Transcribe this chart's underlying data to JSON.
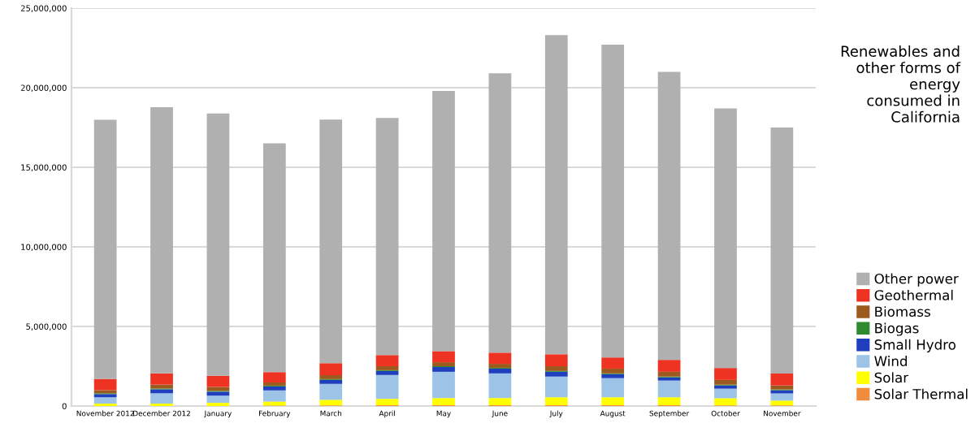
{
  "chart_data": {
    "type": "bar",
    "stacked": true,
    "title": "Renewables and\nother forms of\nenergy\nconsumed in\nCalifornia",
    "categories": [
      "November 2012",
      "December 2012",
      "January",
      "February",
      "March",
      "April",
      "May",
      "June",
      "July",
      "August",
      "September",
      "October",
      "November"
    ],
    "series": [
      {
        "name": "Solar Thermal",
        "color": "#f08c3c",
        "values": [
          null,
          null,
          null,
          30000,
          40000,
          50000,
          50000,
          50000,
          50000,
          50000,
          50000,
          40000,
          40000
        ]
      },
      {
        "name": "Solar",
        "color": "#ffff00",
        "values": [
          150000,
          150000,
          200000,
          250000,
          350000,
          400000,
          450000,
          450000,
          500000,
          500000,
          500000,
          450000,
          300000
        ]
      },
      {
        "name": "Wind",
        "color": "#9dc3e6",
        "values": [
          400000,
          650000,
          450000,
          700000,
          1000000,
          1500000,
          1650000,
          1550000,
          1300000,
          1200000,
          1050000,
          600000,
          450000
        ]
      },
      {
        "name": "Small Hydro",
        "color": "#1f3fbf",
        "values": [
          200000,
          250000,
          250000,
          250000,
          250000,
          250000,
          300000,
          300000,
          300000,
          250000,
          200000,
          200000,
          200000
        ]
      },
      {
        "name": "Biogas",
        "color": "#2e8b2e",
        "values": [
          50000,
          50000,
          50000,
          50000,
          50000,
          50000,
          50000,
          50000,
          50000,
          50000,
          50000,
          50000,
          50000
        ]
      },
      {
        "name": "Biomass",
        "color": "#9c5a1e",
        "values": [
          200000,
          250000,
          250000,
          200000,
          250000,
          250000,
          250000,
          250000,
          300000,
          300000,
          300000,
          300000,
          250000
        ]
      },
      {
        "name": "Geothermal",
        "color": "#ee3322",
        "values": [
          700000,
          700000,
          700000,
          650000,
          750000,
          700000,
          700000,
          700000,
          750000,
          700000,
          750000,
          750000,
          750000
        ]
      },
      {
        "name": "Other power",
        "color": "#b0b0b0",
        "values": [
          16280000,
          16730000,
          16480000,
          14370000,
          15310000,
          14900000,
          16350000,
          17550000,
          20050000,
          19650000,
          18100000,
          16310000,
          15460000
        ]
      }
    ],
    "ylim": [
      0,
      25000000
    ],
    "yticks": [
      {
        "value": 0,
        "label": "0"
      },
      {
        "value": 5000000,
        "label": "5,000,000"
      },
      {
        "value": 10000000,
        "label": "10,000,000"
      },
      {
        "value": 15000000,
        "label": "15,000,000"
      },
      {
        "value": 20000000,
        "label": "20,000,000"
      },
      {
        "value": 25000000,
        "label": "25,000,000"
      }
    ],
    "grid": "y",
    "legend": "right"
  }
}
